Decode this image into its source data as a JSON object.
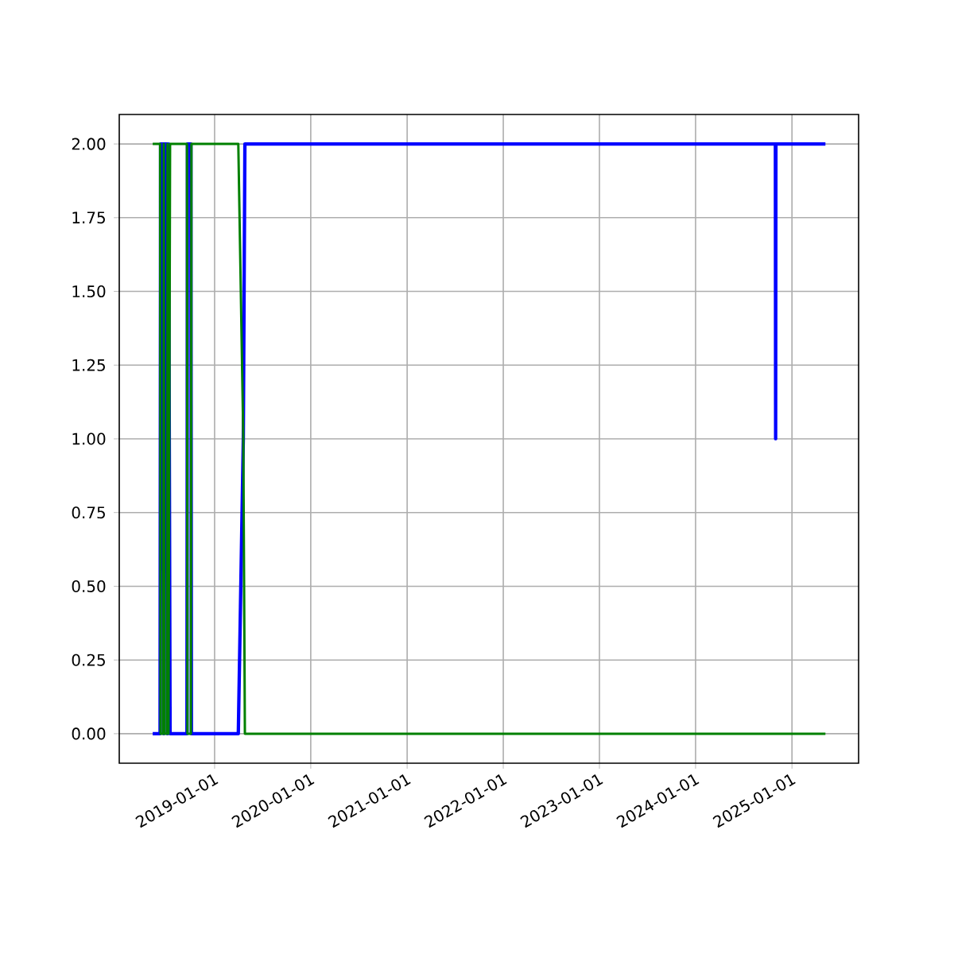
{
  "chart_data": {
    "type": "line",
    "xlim": [
      "2018-01-04",
      "2025-09-11"
    ],
    "ylim": [
      -0.1,
      2.1
    ],
    "xticks": [
      {
        "value": "2019-01-01",
        "label": "2019-01-01"
      },
      {
        "value": "2020-01-01",
        "label": "2020-01-01"
      },
      {
        "value": "2021-01-01",
        "label": "2021-01-01"
      },
      {
        "value": "2022-01-01",
        "label": "2022-01-01"
      },
      {
        "value": "2023-01-01",
        "label": "2023-01-01"
      },
      {
        "value": "2024-01-01",
        "label": "2024-01-01"
      },
      {
        "value": "2025-01-01",
        "label": "2025-01-01"
      }
    ],
    "yticks": [
      {
        "value": 0,
        "label": "0.00"
      },
      {
        "value": 0.25,
        "label": "0.25"
      },
      {
        "value": 0.5,
        "label": "0.50"
      },
      {
        "value": 0.75,
        "label": "0.75"
      },
      {
        "value": 1,
        "label": "1.00"
      },
      {
        "value": 1.25,
        "label": "1.25"
      },
      {
        "value": 1.5,
        "label": "1.50"
      },
      {
        "value": 1.75,
        "label": "1.75"
      },
      {
        "value": 2,
        "label": "2.00"
      }
    ],
    "grid": true,
    "series": [
      {
        "color": "#0000ff",
        "x": [
          "2018-05-11",
          "2018-06-08",
          "2018-06-10",
          "2018-06-20",
          "2018-06-22",
          "2018-06-24",
          "2018-07-04",
          "2018-07-06",
          "2018-07-10",
          "2018-07-16",
          "2018-07-18",
          "2018-09-18",
          "2018-09-20",
          "2018-10-03",
          "2018-10-05",
          "2019-04-01",
          "2019-04-20",
          "2019-04-26",
          "2024-10-30",
          "2024-10-31",
          "2024-11-01",
          "2025-05-08"
        ],
        "values": [
          0,
          0,
          2,
          2,
          0,
          2,
          2,
          0,
          2,
          0,
          0,
          0,
          2,
          2,
          0,
          0,
          1,
          2,
          2,
          1,
          2,
          2
        ]
      },
      {
        "color": "#008000",
        "x": [
          "2018-05-11",
          "2018-06-08",
          "2018-06-10",
          "2018-06-20",
          "2018-06-22",
          "2018-06-24",
          "2018-07-04",
          "2018-07-06",
          "2018-07-10",
          "2018-07-16",
          "2018-07-18",
          "2018-09-18",
          "2018-09-20",
          "2018-10-03",
          "2018-10-05",
          "2019-04-01",
          "2019-04-20",
          "2019-04-26",
          "2025-05-08"
        ],
        "values": [
          2,
          2,
          0,
          0,
          2,
          0,
          0,
          2,
          0,
          2,
          2,
          2,
          0,
          0,
          2,
          2,
          1,
          0,
          0
        ]
      }
    ]
  }
}
